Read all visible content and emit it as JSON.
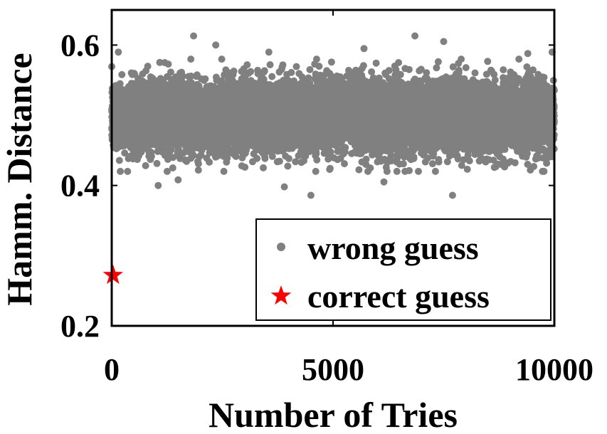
{
  "chart_data": {
    "type": "scatter",
    "xlabel": "Number of Tries",
    "ylabel": "Hamm. Distance",
    "xlim": [
      0,
      10000
    ],
    "ylim": [
      0.2,
      0.65
    ],
    "xticks": [
      0,
      5000,
      10000
    ],
    "xtick_labels": [
      "0",
      "5000",
      "10000"
    ],
    "yticks": [
      0.2,
      0.4,
      0.6
    ],
    "ytick_labels": [
      "0.2",
      "0.4",
      "0.6"
    ],
    "grid": false,
    "legend_position": "bottom-right",
    "series": [
      {
        "name": "wrong guess",
        "marker": "dot",
        "color": "#808080",
        "count": 10000,
        "distribution": {
          "mean": 0.5,
          "std": 0.025
        },
        "notable_points": [
          {
            "x": 1850,
            "y": 0.613
          },
          {
            "x": 6850,
            "y": 0.613
          },
          {
            "x": 2350,
            "y": 0.6
          },
          {
            "x": 7500,
            "y": 0.605
          },
          {
            "x": 5700,
            "y": 0.595
          },
          {
            "x": 150,
            "y": 0.59
          },
          {
            "x": 3550,
            "y": 0.59
          },
          {
            "x": 9400,
            "y": 0.588
          },
          {
            "x": 9950,
            "y": 0.59
          },
          {
            "x": 4500,
            "y": 0.386
          },
          {
            "x": 7700,
            "y": 0.386
          },
          {
            "x": 1050,
            "y": 0.4
          },
          {
            "x": 3900,
            "y": 0.398
          },
          {
            "x": 1500,
            "y": 0.408
          },
          {
            "x": 6150,
            "y": 0.405
          }
        ]
      },
      {
        "name": "correct guess",
        "marker": "star",
        "color": "#ff0000",
        "points": [
          {
            "x": 30,
            "y": 0.272
          }
        ]
      }
    ]
  }
}
